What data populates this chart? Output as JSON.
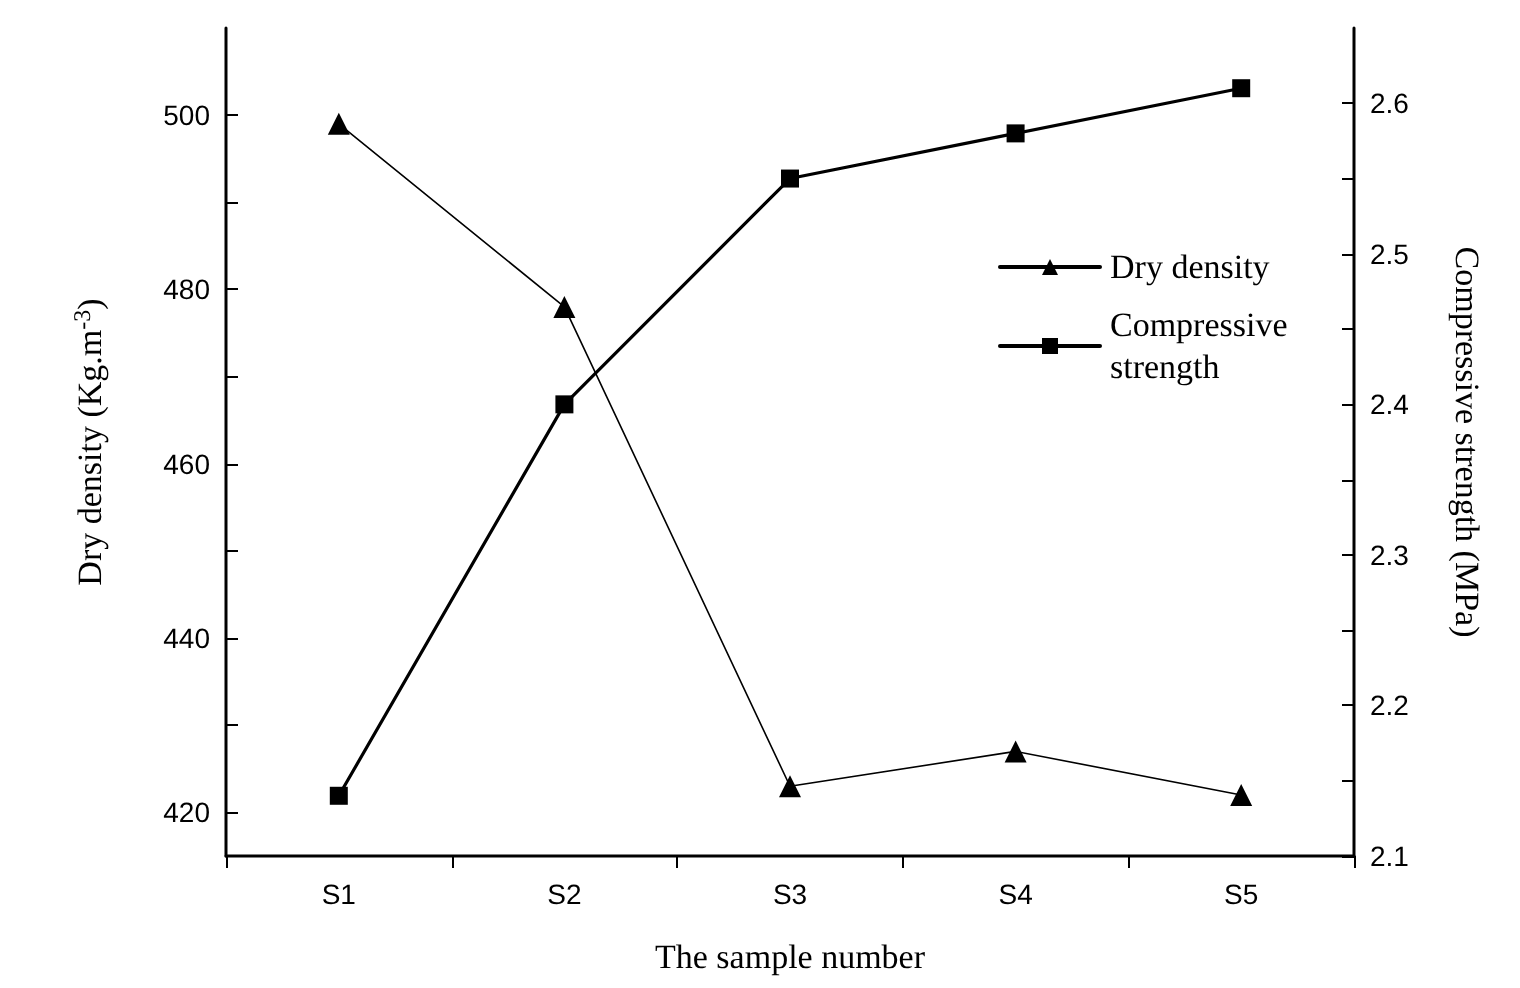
{
  "chart_data": {
    "type": "line",
    "xlabel": "The sample number",
    "ylabel": "Dry density (Kg.m$^{-3}$)",
    "y2label": "Compressive strength (MPa)",
    "categories": [
      "S1",
      "S2",
      "S3",
      "S4",
      "S5"
    ],
    "series": [
      {
        "name": "Dry density",
        "color": "#000000",
        "marker": "triangle",
        "values": [
          499,
          478,
          423,
          427,
          422
        ]
      },
      {
        "name": "Compressive strength",
        "color": "#000000",
        "marker": "square",
        "axis": "y2",
        "values": [
          2.14,
          2.4,
          2.55,
          2.58,
          2.61
        ]
      }
    ],
    "ylim": [
      415,
      510
    ],
    "yticks": [
      420,
      {
        "value": 430,
        "label": null
      },
      440,
      {
        "value": 450,
        "label": null
      },
      460,
      {
        "value": 470,
        "label": null
      },
      480,
      {
        "value": 490,
        "label": null
      },
      500
    ],
    "y2lim": [
      2.1,
      2.65
    ],
    "y2ticks": [
      {
        "value": 2.1,
        "label": "2.1"
      },
      {
        "value": 2.15,
        "label": null
      },
      {
        "value": 2.2,
        "label": "2.2"
      },
      {
        "value": 2.25,
        "label": null
      },
      {
        "value": 2.3,
        "label": "2.3"
      },
      {
        "value": 2.35,
        "label": null
      },
      {
        "value": 2.4,
        "label": "2.4"
      },
      {
        "value": 2.45,
        "label": null
      },
      {
        "value": 2.5,
        "label": "2.5"
      },
      {
        "value": 2.55,
        "label": null
      },
      {
        "value": 2.6,
        "label": "2.6"
      }
    ],
    "legend": "top right",
    "grid": false,
    "line_style": "solid"
  }
}
